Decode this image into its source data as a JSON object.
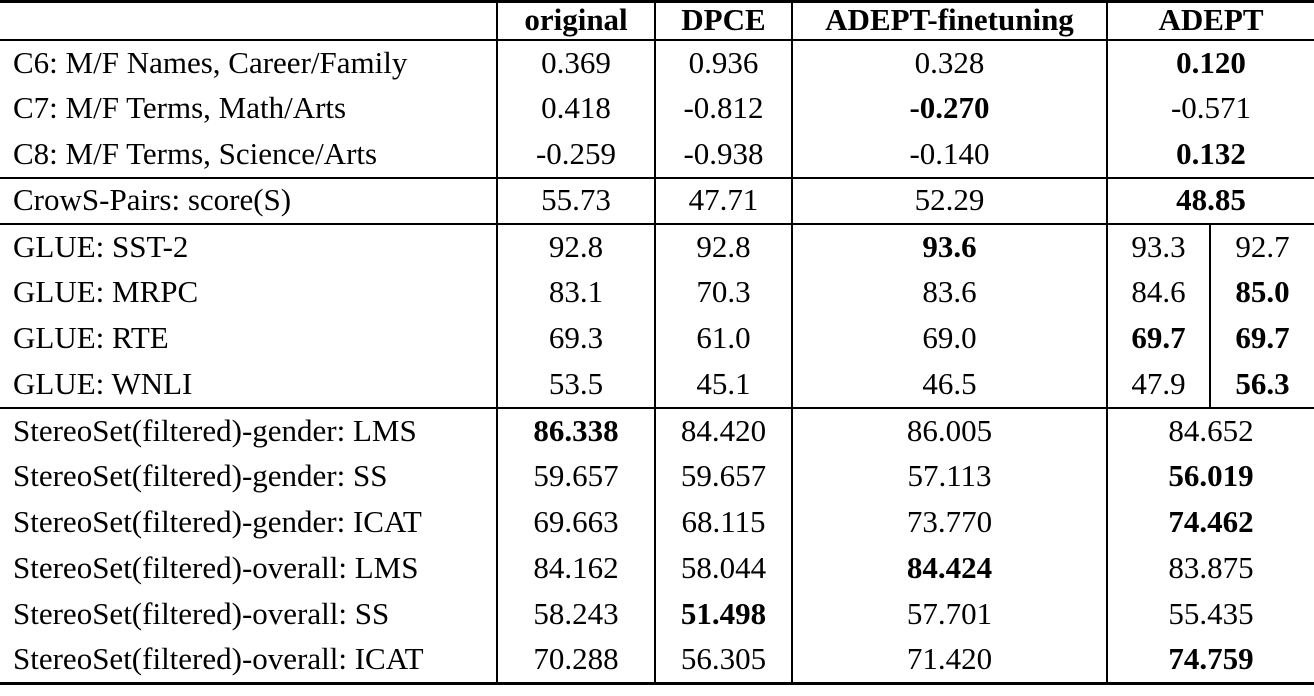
{
  "table": {
    "header": {
      "label": "",
      "columns": [
        "original",
        "DPCE",
        "ADEPT-finetuning",
        "ADEPT"
      ]
    },
    "sections": [
      {
        "name": "seat-tests",
        "rows": [
          {
            "label": "C6: M/F Names, Career/Family",
            "cells": [
              {
                "t": "0.369"
              },
              {
                "t": "0.936"
              },
              {
                "t": "0.328"
              },
              {
                "t": "0.120",
                "b": true,
                "span": 2
              }
            ]
          },
          {
            "label": "C7: M/F Terms, Math/Arts",
            "cells": [
              {
                "t": "0.418"
              },
              {
                "t": "-0.812"
              },
              {
                "t": "-0.270",
                "b": true
              },
              {
                "t": "-0.571",
                "span": 2
              }
            ]
          },
          {
            "label": "C8: M/F Terms, Science/Arts",
            "cells": [
              {
                "t": "-0.259"
              },
              {
                "t": "-0.938"
              },
              {
                "t": "-0.140"
              },
              {
                "t": "0.132",
                "b": true,
                "span": 2
              }
            ]
          }
        ]
      },
      {
        "name": "crows-pairs",
        "rows": [
          {
            "label": "CrowS-Pairs: score(S)",
            "cells": [
              {
                "t": "55.73"
              },
              {
                "t": "47.71"
              },
              {
                "t": "52.29"
              },
              {
                "t": "48.85",
                "b": true,
                "span": 2
              }
            ]
          }
        ]
      },
      {
        "name": "glue",
        "rows": [
          {
            "label": "GLUE: SST-2",
            "cells": [
              {
                "t": "92.8"
              },
              {
                "t": "92.8"
              },
              {
                "t": "93.6",
                "b": true
              },
              {
                "t": "93.3"
              },
              {
                "t": "92.7"
              }
            ]
          },
          {
            "label": "GLUE: MRPC",
            "cells": [
              {
                "t": "83.1"
              },
              {
                "t": "70.3"
              },
              {
                "t": "83.6"
              },
              {
                "t": "84.6"
              },
              {
                "t": "85.0",
                "b": true
              }
            ]
          },
          {
            "label": "GLUE: RTE",
            "cells": [
              {
                "t": "69.3"
              },
              {
                "t": "61.0"
              },
              {
                "t": "69.0"
              },
              {
                "t": "69.7",
                "b": true
              },
              {
                "t": "69.7",
                "b": true
              }
            ]
          },
          {
            "label": "GLUE: WNLI",
            "cells": [
              {
                "t": "53.5"
              },
              {
                "t": "45.1"
              },
              {
                "t": "46.5"
              },
              {
                "t": "47.9"
              },
              {
                "t": "56.3",
                "b": true
              }
            ]
          }
        ]
      },
      {
        "name": "stereoset",
        "rows": [
          {
            "label": "StereoSet(filtered)-gender: LMS",
            "cells": [
              {
                "t": "86.338",
                "b": true
              },
              {
                "t": "84.420"
              },
              {
                "t": "86.005"
              },
              {
                "t": "84.652",
                "span": 2
              }
            ]
          },
          {
            "label": "StereoSet(filtered)-gender: SS",
            "cells": [
              {
                "t": "59.657"
              },
              {
                "t": "59.657"
              },
              {
                "t": "57.113"
              },
              {
                "t": "56.019",
                "b": true,
                "span": 2
              }
            ]
          },
          {
            "label": "StereoSet(filtered)-gender: ICAT",
            "cells": [
              {
                "t": "69.663"
              },
              {
                "t": "68.115"
              },
              {
                "t": "73.770"
              },
              {
                "t": "74.462",
                "b": true,
                "span": 2
              }
            ]
          },
          {
            "label": "StereoSet(filtered)-overall: LMS",
            "cells": [
              {
                "t": "84.162"
              },
              {
                "t": "58.044"
              },
              {
                "t": "84.424",
                "b": true
              },
              {
                "t": "83.875",
                "span": 2
              }
            ]
          },
          {
            "label": "StereoSet(filtered)-overall: SS",
            "cells": [
              {
                "t": "58.243"
              },
              {
                "t": "51.498",
                "b": true
              },
              {
                "t": "57.701"
              },
              {
                "t": "55.435",
                "span": 2
              }
            ]
          },
          {
            "label": "StereoSet(filtered)-overall: ICAT",
            "cells": [
              {
                "t": "70.288"
              },
              {
                "t": "56.305"
              },
              {
                "t": "71.420"
              },
              {
                "t": "74.759",
                "b": true,
                "span": 2
              }
            ]
          }
        ]
      }
    ]
  },
  "colors": {
    "border": "#000000",
    "text": "#000000",
    "background": "#ffffff"
  }
}
